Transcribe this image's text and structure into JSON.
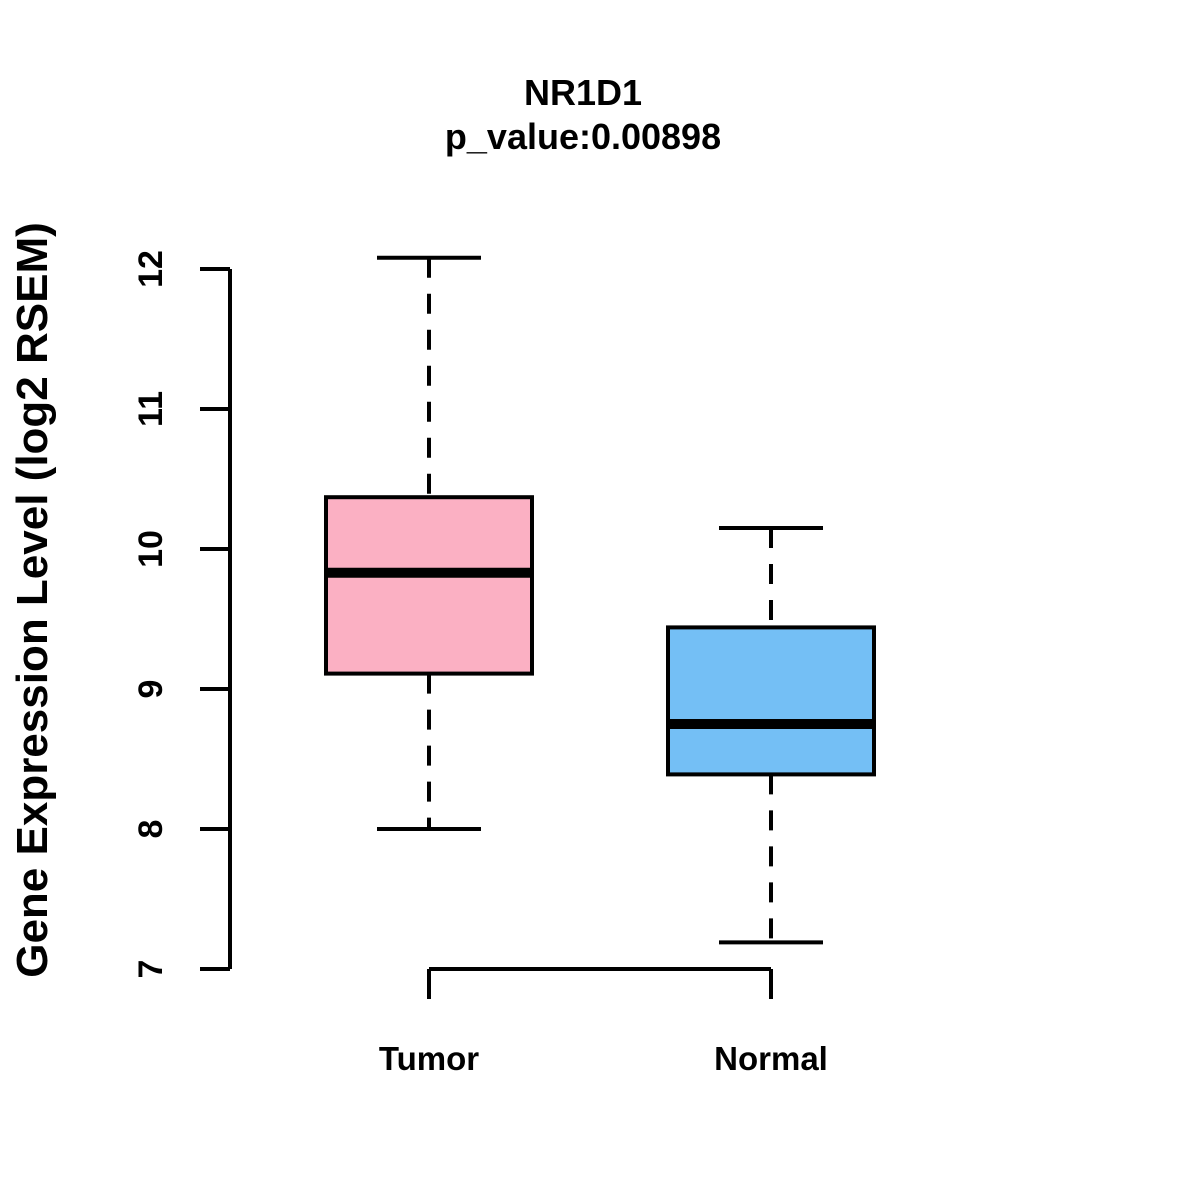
{
  "chart_data": {
    "type": "boxplot",
    "title": "NR1D1",
    "subtitle": "p_value:0.00898",
    "ylabel": "Gene Expression Level (log2 RSEM)",
    "xlabel": "",
    "ylim": [
      7,
      12
    ],
    "yticks": [
      7,
      8,
      9,
      10,
      11,
      12
    ],
    "grid": false,
    "legend": "none",
    "categories": [
      "Tumor",
      "Normal"
    ],
    "series": [
      {
        "name": "Tumor",
        "whisker_low": 8.0,
        "q1": 9.11,
        "median": 9.83,
        "q3": 10.37,
        "whisker_high": 12.08,
        "fill_color": "#FBB0C3"
      },
      {
        "name": "Normal",
        "whisker_low": 7.19,
        "q1": 8.39,
        "median": 8.75,
        "q3": 9.44,
        "whisker_high": 10.15,
        "fill_color": "#74BFF5"
      }
    ],
    "line_color": "#000000",
    "background_color": "#FFFFFF"
  }
}
